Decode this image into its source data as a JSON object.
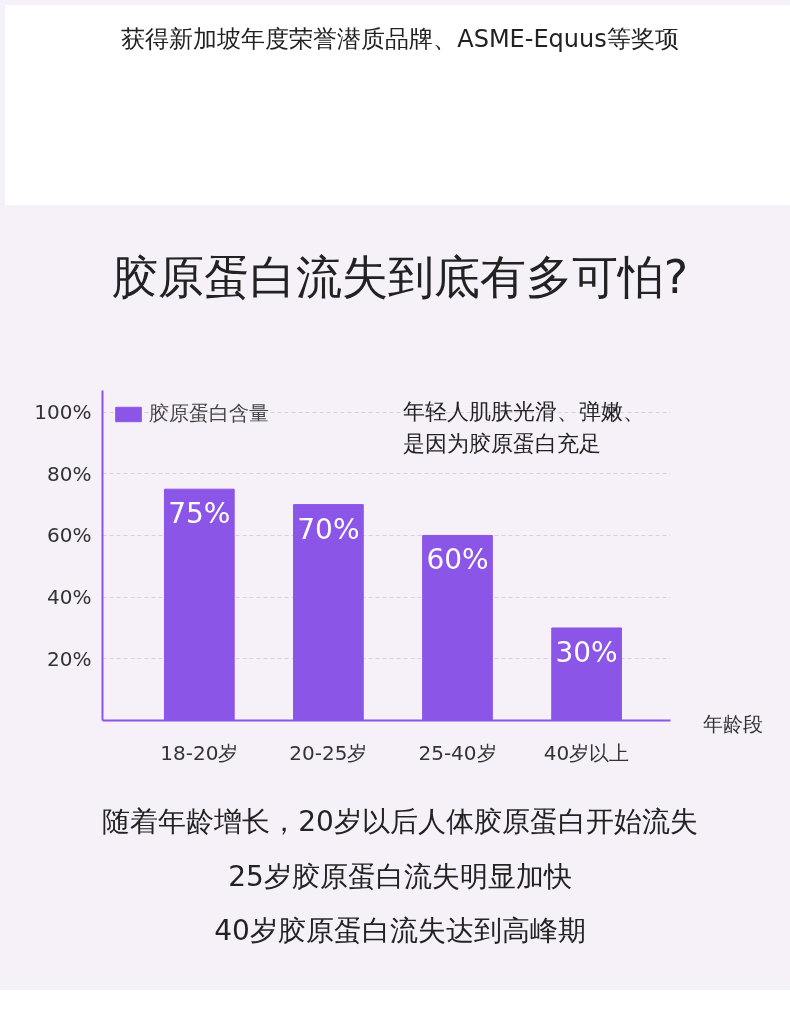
{
  "chart_data": {
    "type": "bar",
    "title": "胶原蛋白流失到底有多可怕?",
    "xlabel": "年龄段",
    "categories": [
      "18-20岁",
      "20-25岁",
      "25-40岁",
      "40岁以上"
    ],
    "series": [
      {
        "name": "胶原蛋白含量",
        "color": "#8b55e8",
        "values": [
          75,
          70,
          60,
          30
        ]
      }
    ],
    "ylim": [
      0,
      107
    ],
    "yticks": [
      {
        "value": 20,
        "label": "20%"
      },
      {
        "value": 40,
        "label": "40%"
      },
      {
        "value": 60,
        "label": "60%"
      },
      {
        "value": 80,
        "label": "80%"
      },
      {
        "value": 100,
        "label": "100%"
      }
    ],
    "value_labels": [
      "75%",
      "70%",
      "60%",
      "30%"
    ],
    "grid": "y",
    "legend": "top left",
    "annotations": [
      "获得新加坡年度荣誉潜质品牌、ASME-Equus等奖项",
      "年轻人肌肤光滑、弹嫩、",
      "是因为胶原蛋白充足",
      "随着年龄增长，20岁以后人体胶原蛋白开始流失",
      "25岁胶原蛋白流失明显加快",
      "40岁胶原蛋白流失达到高峰期"
    ]
  }
}
